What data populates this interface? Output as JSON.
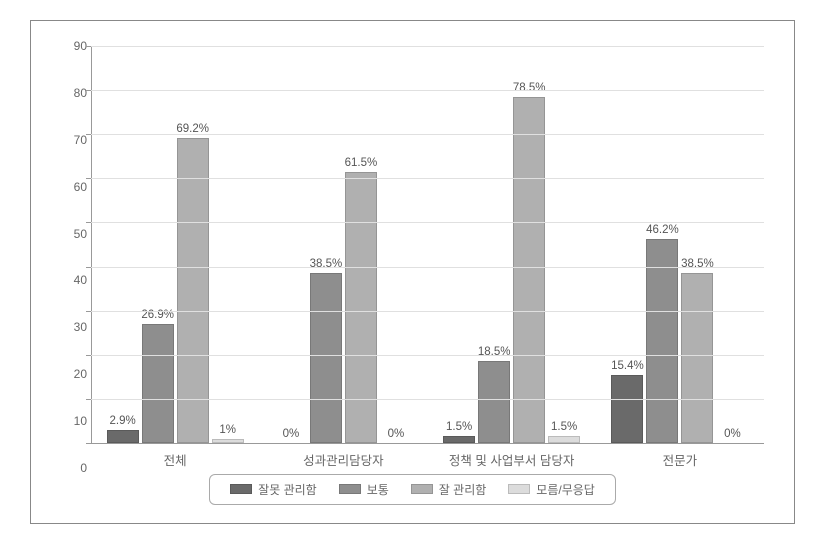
{
  "chart": {
    "type": "bar-grouped",
    "ylim": [
      0,
      90
    ],
    "ytick_step": 10,
    "yticks": [
      0,
      10,
      20,
      30,
      40,
      50,
      60,
      70,
      80,
      90
    ],
    "background_color": "#ffffff",
    "grid_color": "#e0e0e0",
    "axis_color": "#999999",
    "outer_border_color": "#888888",
    "tick_label_color": "#666666",
    "data_label_color": "#555555",
    "tick_fontsize": 12,
    "data_label_fontsize": 11.5,
    "x_label_fontsize": 12.5,
    "legend_fontsize": 12,
    "bar_gap": 3,
    "categories": [
      "전체",
      "성과관리담당자",
      "정책 및 사업부서 담당자",
      "전문가"
    ],
    "series": [
      {
        "name": "잘못 관리함",
        "color": "#6a6a6a"
      },
      {
        "name": "보통",
        "color": "#8e8e8e"
      },
      {
        "name": "잘 관리함",
        "color": "#b0b0b0"
      },
      {
        "name": "모름/무응답",
        "color": "#dcdcdc"
      }
    ],
    "values": [
      [
        2.9,
        26.9,
        69.2,
        1.0
      ],
      [
        0.0,
        38.5,
        61.5,
        0.0
      ],
      [
        1.5,
        18.5,
        78.5,
        1.5
      ],
      [
        15.4,
        46.2,
        38.5,
        0.0
      ]
    ],
    "labels": [
      [
        "2.9%",
        "26.9%",
        "69.2%",
        "1%"
      ],
      [
        "0%",
        "38.5%",
        "61.5%",
        "0%"
      ],
      [
        "1.5%",
        "18.5%",
        "78.5%",
        "1.5%"
      ],
      [
        "15.4%",
        "46.2%",
        "38.5%",
        "0%"
      ]
    ]
  }
}
